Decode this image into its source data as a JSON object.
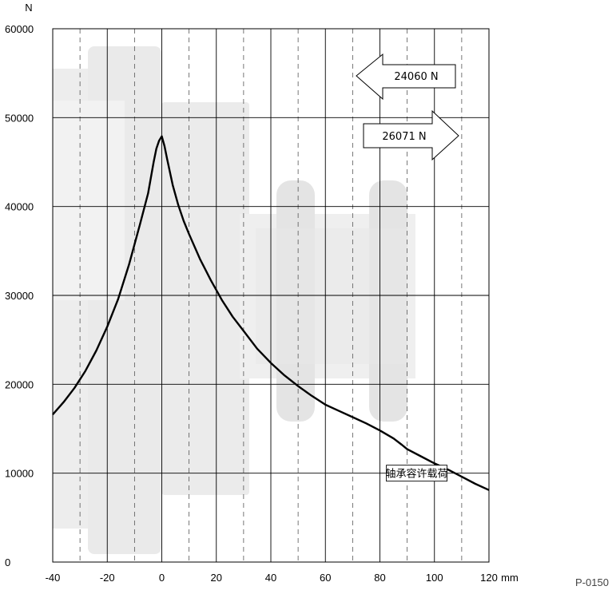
{
  "chart_data": {
    "type": "line",
    "ylabel": "N",
    "xunit": "mm",
    "xlim": [
      -40,
      120
    ],
    "ylim": [
      0,
      60000
    ],
    "x_ticks": [
      -40,
      -20,
      0,
      20,
      40,
      60,
      80,
      100,
      120
    ],
    "y_ticks": [
      0,
      10000,
      20000,
      30000,
      40000,
      50000,
      60000
    ],
    "minor_x_grid": [
      -30,
      -10,
      10,
      30,
      50,
      70,
      90,
      110
    ],
    "grid": true,
    "series": [
      {
        "name": "轴承容许载荷",
        "x": [
          -40,
          -36,
          -32,
          -28,
          -24,
          -20,
          -16,
          -12,
          -8,
          -5,
          -3,
          -2,
          -1,
          0,
          1,
          2,
          4,
          6,
          8,
          10,
          14,
          18,
          22,
          26,
          30,
          35,
          40,
          45,
          50,
          55,
          60,
          65,
          70,
          75,
          80,
          85,
          88,
          90,
          95,
          100,
          105,
          110,
          115,
          120
        ],
        "y": [
          16600,
          18000,
          19600,
          21500,
          23800,
          26500,
          29600,
          33500,
          38000,
          41500,
          45000,
          46500,
          47400,
          47900,
          46800,
          45300,
          42400,
          40200,
          38400,
          36900,
          34100,
          31700,
          29500,
          27600,
          26000,
          24000,
          22400,
          21000,
          19800,
          18700,
          17700,
          17000,
          16300,
          15600,
          14800,
          13900,
          13200,
          12700,
          11900,
          11100,
          10400,
          9600,
          8800,
          8100
        ]
      }
    ],
    "annotations": [
      {
        "text": "24060 N",
        "direction": "left"
      },
      {
        "text": "26071 N",
        "direction": "right"
      },
      {
        "text": "轴承容许载荷"
      }
    ],
    "figure_code": "P-0150"
  },
  "colors": {
    "grid": "#000000",
    "curve": "#000000",
    "background_art": "#e6e6e6"
  }
}
